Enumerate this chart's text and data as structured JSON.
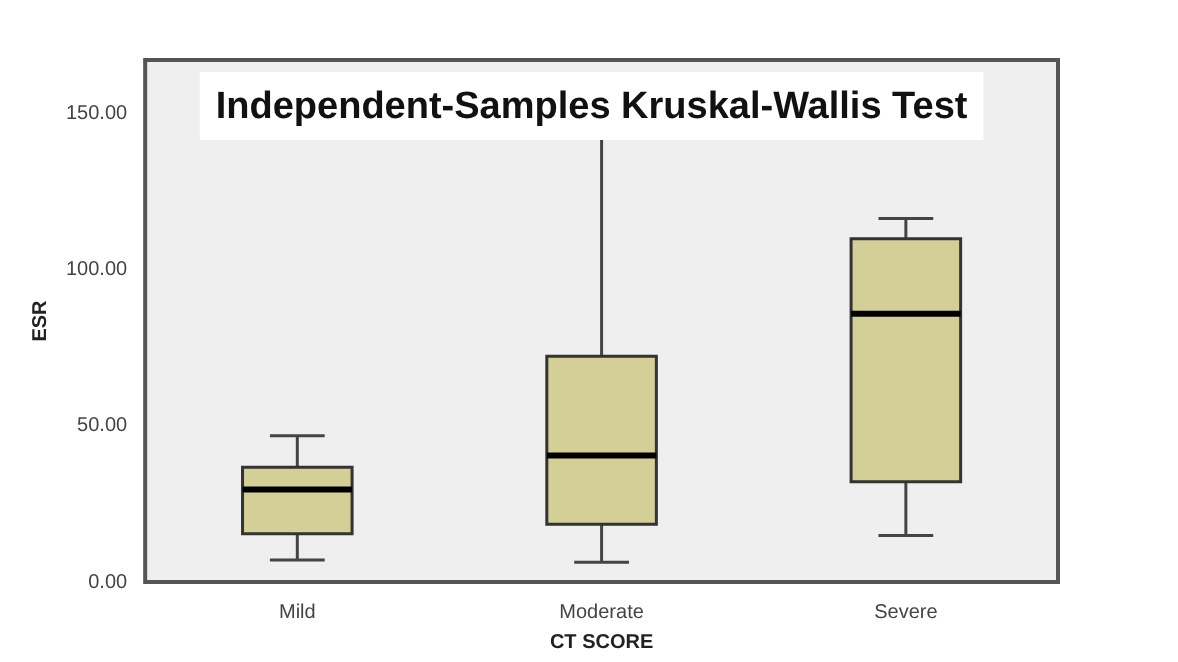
{
  "chart_data": {
    "type": "box",
    "title": "Independent-Samples Kruskal-Wallis Test",
    "xlabel": "CT SCORE",
    "ylabel": "ESR",
    "categories": [
      "Mild",
      "Moderate",
      "Severe"
    ],
    "boxes": [
      {
        "low": 7,
        "q1": 15.4,
        "median": 29.6,
        "q3": 36.7,
        "high": 46.8
      },
      {
        "low": 6.3,
        "q1": 18.5,
        "median": 40.5,
        "q3": 72.2,
        "high": 160
      },
      {
        "low": 14.9,
        "q1": 32.1,
        "median": 85.8,
        "q3": 109.8,
        "high": 116.3
      }
    ],
    "color": "#d4cf96",
    "ylim": [
      0,
      167
    ],
    "yticks": [
      {
        "value": 0,
        "label": "0.00"
      },
      {
        "value": 50,
        "label": "50.00"
      },
      {
        "value": 100,
        "label": "100.00"
      },
      {
        "value": 150,
        "label": "150.00"
      }
    ],
    "grid": false,
    "legend": false
  }
}
